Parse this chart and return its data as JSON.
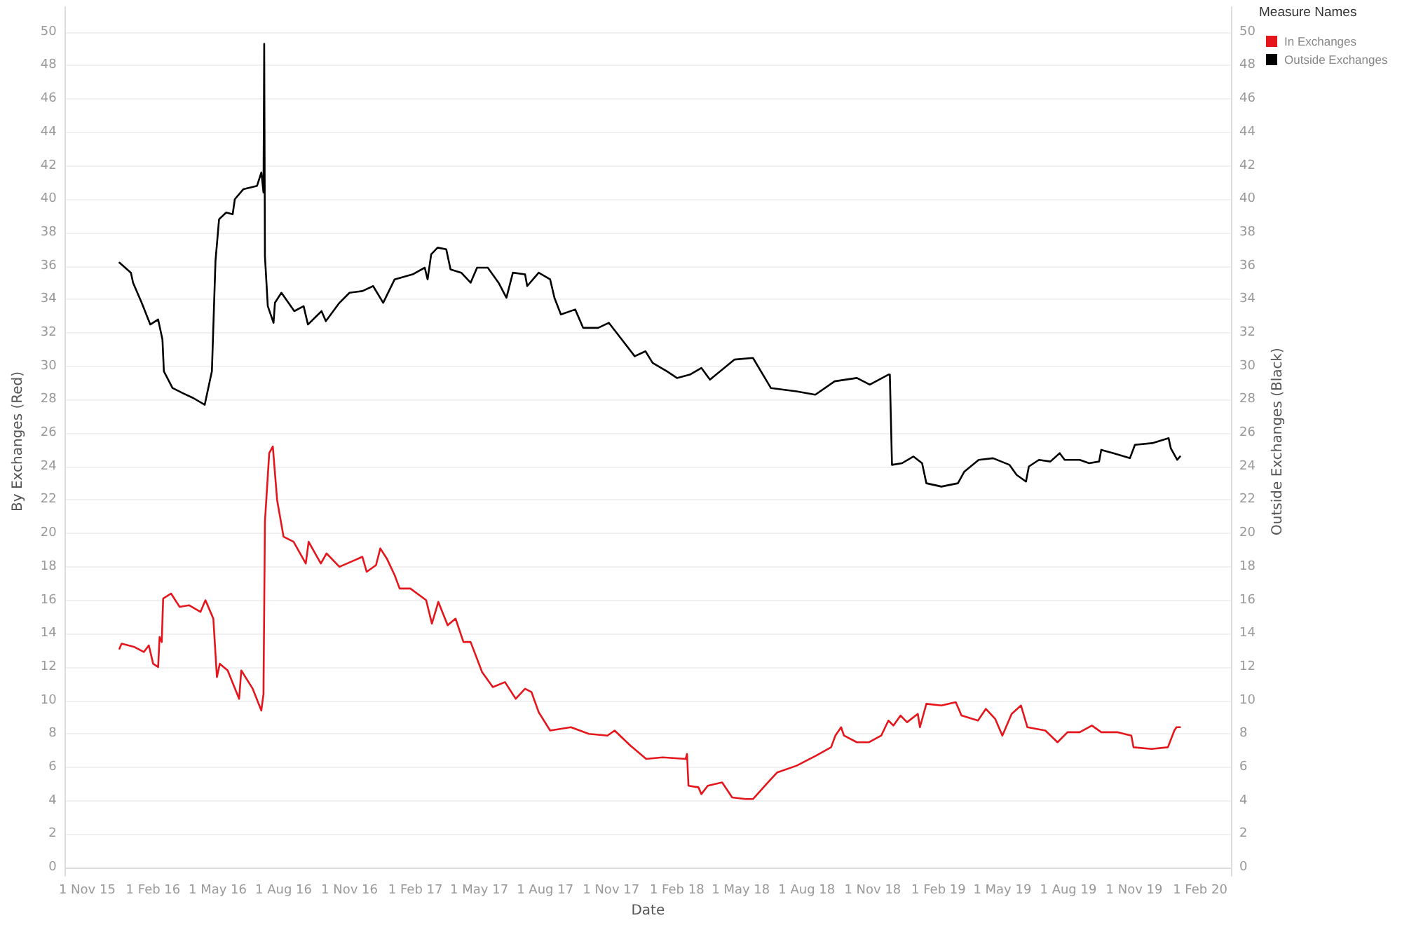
{
  "chart_data": {
    "type": "line",
    "xlabel": "Date",
    "ylabel": "By Exchanges (Red)",
    "y2label": "Outside Exchanges (Black)",
    "legend_title": "Measure Names",
    "xlim": [
      "2015-10-01",
      "2020-03-15"
    ],
    "xticks": [
      {
        "value": "2015-11-01",
        "label": "1 Nov 15"
      },
      {
        "value": "2016-02-01",
        "label": "1 Feb 16"
      },
      {
        "value": "2016-05-01",
        "label": "1 May 16"
      },
      {
        "value": "2016-08-01",
        "label": "1 Aug 16"
      },
      {
        "value": "2016-11-01",
        "label": "1 Nov 16"
      },
      {
        "value": "2017-02-01",
        "label": "1 Feb 17"
      },
      {
        "value": "2017-05-01",
        "label": "1 May 17"
      },
      {
        "value": "2017-08-01",
        "label": "1 Aug 17"
      },
      {
        "value": "2017-11-01",
        "label": "1 Nov 17"
      },
      {
        "value": "2018-02-01",
        "label": "1 Feb 18"
      },
      {
        "value": "2018-05-01",
        "label": "1 May 18"
      },
      {
        "value": "2018-08-01",
        "label": "1 Aug 18"
      },
      {
        "value": "2018-11-01",
        "label": "1 Nov 18"
      },
      {
        "value": "2019-02-01",
        "label": "1 Feb 19"
      },
      {
        "value": "2019-05-01",
        "label": "1 May 19"
      },
      {
        "value": "2019-08-01",
        "label": "1 Aug 19"
      },
      {
        "value": "2019-11-01",
        "label": "1 Nov 19"
      },
      {
        "value": "2020-02-01",
        "label": "1 Feb 20"
      }
    ],
    "ylim": [
      -0.5,
      51.5
    ],
    "yticks": [
      0,
      2,
      4,
      6,
      8,
      10,
      12,
      14,
      16,
      18,
      20,
      22,
      24,
      26,
      28,
      30,
      32,
      34,
      36,
      38,
      40,
      42,
      44,
      46,
      48,
      50
    ],
    "y2lim": [
      -0.5,
      51.5
    ],
    "y2ticks": [
      0,
      2,
      4,
      6,
      8,
      10,
      12,
      14,
      16,
      18,
      20,
      22,
      24,
      26,
      28,
      30,
      32,
      34,
      36,
      38,
      40,
      42,
      44,
      46,
      48,
      50
    ],
    "grid": "y",
    "legend": "top right",
    "series": [
      {
        "name": "In Exchanges",
        "color": "#e4161b",
        "x": [
          "2015-12-16",
          "2015-12-19",
          "2016-01-06",
          "2016-01-19",
          "2016-01-26",
          "2016-02-01",
          "2016-02-08",
          "2016-02-10",
          "2016-02-13",
          "2016-02-15",
          "2016-02-26",
          "2016-03-09",
          "2016-03-22",
          "2016-04-07",
          "2016-04-14",
          "2016-04-22",
          "2016-04-25",
          "2016-04-30",
          "2016-05-04",
          "2016-05-15",
          "2016-05-31",
          "2016-06-03",
          "2016-06-19",
          "2016-07-01",
          "2016-07-04",
          "2016-07-06",
          "2016-07-12",
          "2016-07-17",
          "2016-07-23",
          "2016-08-01",
          "2016-08-15",
          "2016-09-01",
          "2016-09-05",
          "2016-09-22",
          "2016-09-30",
          "2016-10-18",
          "2016-11-19",
          "2016-11-25",
          "2016-12-08",
          "2016-12-14",
          "2016-12-23",
          "2017-01-03",
          "2017-01-10",
          "2017-01-25",
          "2017-02-16",
          "2017-02-24",
          "2017-03-05",
          "2017-03-18",
          "2017-03-29",
          "2017-04-09",
          "2017-04-19",
          "2017-05-05",
          "2017-05-20",
          "2017-06-06",
          "2017-06-21",
          "2017-07-04",
          "2017-07-13",
          "2017-07-23",
          "2017-08-08",
          "2017-09-06",
          "2017-10-01",
          "2017-10-27",
          "2017-11-06",
          "2017-11-28",
          "2017-12-20",
          "2018-01-12",
          "2018-02-13",
          "2018-02-15",
          "2018-02-17",
          "2018-03-03",
          "2018-03-07",
          "2018-03-16",
          "2018-04-05",
          "2018-04-19",
          "2018-05-08",
          "2018-05-18",
          "2018-06-08",
          "2018-06-21",
          "2018-07-18",
          "2018-08-14",
          "2018-09-04",
          "2018-09-10",
          "2018-09-18",
          "2018-09-22",
          "2018-10-10",
          "2018-10-27",
          "2018-11-13",
          "2018-11-23",
          "2018-11-30",
          "2018-12-10",
          "2018-12-19",
          "2019-01-03",
          "2019-01-06",
          "2019-01-15",
          "2019-02-05",
          "2019-02-25",
          "2019-03-05",
          "2019-03-28",
          "2019-04-08",
          "2019-04-21",
          "2019-05-01",
          "2019-05-14",
          "2019-05-27",
          "2019-06-05",
          "2019-06-30",
          "2019-07-17",
          "2019-07-31",
          "2019-08-17",
          "2019-09-03",
          "2019-09-16",
          "2019-10-09",
          "2019-10-28",
          "2019-10-31",
          "2019-11-25",
          "2019-12-18",
          "2019-12-27",
          "2019-12-30",
          "2020-01-04"
        ],
        "values": [
          13.1,
          13.4,
          13.2,
          12.9,
          13.3,
          12.2,
          12.0,
          13.8,
          13.5,
          16.1,
          16.4,
          15.6,
          15.7,
          15.3,
          16.0,
          15.2,
          14.9,
          11.4,
          12.2,
          11.8,
          10.1,
          11.8,
          10.7,
          9.4,
          10.4,
          20.7,
          24.8,
          25.2,
          22.0,
          19.8,
          19.5,
          18.2,
          19.5,
          18.2,
          18.8,
          18.0,
          18.6,
          17.7,
          18.1,
          19.1,
          18.5,
          17.5,
          16.7,
          16.7,
          16.0,
          14.6,
          15.9,
          14.5,
          14.9,
          13.5,
          13.5,
          11.7,
          10.8,
          11.1,
          10.1,
          10.7,
          10.5,
          9.3,
          8.2,
          8.4,
          8.0,
          7.9,
          8.2,
          7.3,
          6.5,
          6.6,
          6.5,
          6.8,
          4.9,
          4.8,
          4.4,
          4.9,
          5.1,
          4.2,
          4.1,
          4.1,
          5.1,
          5.7,
          6.1,
          6.7,
          7.2,
          7.9,
          8.4,
          7.9,
          7.5,
          7.5,
          7.9,
          8.8,
          8.5,
          9.1,
          8.7,
          9.2,
          8.4,
          9.8,
          9.7,
          9.9,
          9.1,
          8.8,
          9.5,
          8.9,
          7.9,
          9.2,
          9.7,
          8.4,
          8.2,
          7.5,
          8.1,
          8.1,
          8.5,
          8.1,
          8.1,
          7.9,
          7.2,
          7.1,
          7.2,
          8.2,
          8.4,
          8.4
        ]
      },
      {
        "name": "Outside Exchanges",
        "color": "#000000",
        "x": [
          "2015-12-16",
          "2016-01-01",
          "2016-01-04",
          "2016-01-16",
          "2016-01-28",
          "2016-02-08",
          "2016-02-14",
          "2016-02-16",
          "2016-02-28",
          "2016-03-13",
          "2016-03-28",
          "2016-04-13",
          "2016-04-23",
          "2016-04-28",
          "2016-05-03",
          "2016-05-13",
          "2016-05-22",
          "2016-05-25",
          "2016-06-06",
          "2016-06-25",
          "2016-07-01",
          "2016-07-04",
          "2016-07-05",
          "2016-07-06",
          "2016-07-10",
          "2016-07-18",
          "2016-07-20",
          "2016-07-29",
          "2016-08-16",
          "2016-08-29",
          "2016-09-04",
          "2016-09-23",
          "2016-09-29",
          "2016-10-18",
          "2016-11-01",
          "2016-11-19",
          "2016-12-04",
          "2016-12-18",
          "2017-01-03",
          "2017-01-28",
          "2017-02-14",
          "2017-02-18",
          "2017-02-23",
          "2017-03-04",
          "2017-03-16",
          "2017-03-22",
          "2017-04-06",
          "2017-04-19",
          "2017-04-28",
          "2017-05-13",
          "2017-05-28",
          "2017-06-08",
          "2017-06-17",
          "2017-07-04",
          "2017-07-07",
          "2017-07-23",
          "2017-08-08",
          "2017-08-14",
          "2017-08-23",
          "2017-09-12",
          "2017-09-23",
          "2017-10-14",
          "2017-10-29",
          "2017-11-16",
          "2017-12-04",
          "2017-12-19",
          "2017-12-29",
          "2018-01-18",
          "2018-02-01",
          "2018-02-19",
          "2018-03-07",
          "2018-03-19",
          "2018-04-22",
          "2018-05-18",
          "2018-06-12",
          "2018-07-18",
          "2018-08-13",
          "2018-09-09",
          "2018-10-10",
          "2018-10-28",
          "2018-11-23",
          "2018-11-25",
          "2018-11-28",
          "2018-12-12",
          "2018-12-28",
          "2019-01-09",
          "2019-01-15",
          "2019-02-05",
          "2019-02-28",
          "2019-03-09",
          "2019-03-29",
          "2019-04-18",
          "2019-05-11",
          "2019-05-21",
          "2019-06-03",
          "2019-06-07",
          "2019-06-21",
          "2019-07-07",
          "2019-07-20",
          "2019-07-27",
          "2019-08-17",
          "2019-08-30",
          "2019-09-13",
          "2019-09-16",
          "2019-10-03",
          "2019-10-26",
          "2019-11-02",
          "2019-11-26",
          "2019-12-19",
          "2019-12-22",
          "2019-12-31",
          "2020-01-04"
        ],
        "values": [
          36.2,
          35.6,
          35.0,
          33.8,
          32.5,
          32.8,
          31.6,
          29.7,
          28.7,
          28.4,
          28.1,
          27.7,
          29.7,
          36.3,
          38.8,
          39.2,
          39.1,
          40.0,
          40.6,
          40.8,
          41.6,
          40.4,
          49.3,
          36.6,
          33.6,
          32.6,
          33.8,
          34.4,
          33.3,
          33.6,
          32.5,
          33.3,
          32.7,
          33.8,
          34.4,
          34.5,
          34.8,
          33.8,
          35.2,
          35.5,
          35.9,
          35.2,
          36.7,
          37.1,
          37.0,
          35.8,
          35.6,
          35.0,
          35.9,
          35.9,
          35.0,
          34.1,
          35.6,
          35.5,
          34.8,
          35.6,
          35.2,
          34.1,
          33.1,
          33.4,
          32.3,
          32.3,
          32.6,
          31.6,
          30.6,
          30.9,
          30.2,
          29.7,
          29.3,
          29.5,
          29.9,
          29.2,
          30.4,
          30.5,
          28.7,
          28.5,
          28.3,
          29.1,
          29.3,
          28.9,
          29.5,
          29.5,
          24.1,
          24.2,
          24.6,
          24.2,
          23.0,
          22.8,
          23.0,
          23.7,
          24.4,
          24.5,
          24.1,
          23.5,
          23.1,
          24.0,
          24.4,
          24.3,
          24.8,
          24.4,
          24.4,
          24.2,
          24.3,
          25.0,
          24.8,
          24.5,
          25.3,
          25.4,
          25.7,
          25.1,
          24.4,
          24.6
        ]
      }
    ]
  }
}
